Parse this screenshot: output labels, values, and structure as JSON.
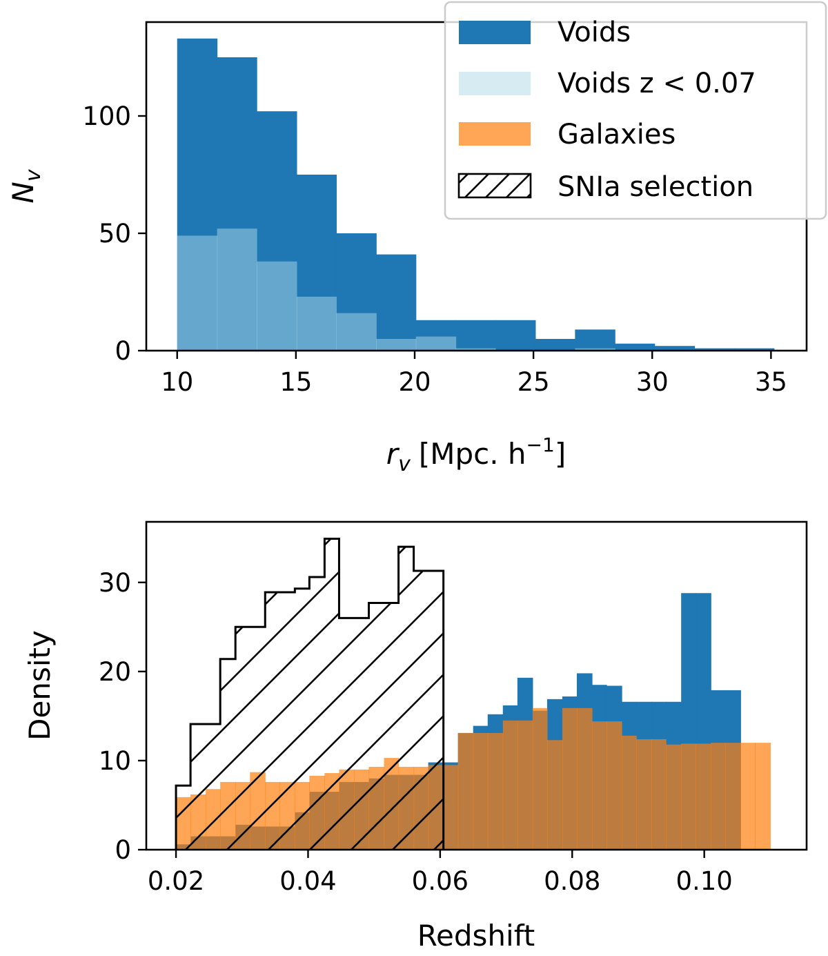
{
  "chart_data": [
    {
      "type": "bar",
      "title": "",
      "xlabel": "r_v [Mpc. h^-1]",
      "ylabel": "N_v",
      "xlim": [
        8.7,
        36.5
      ],
      "ylim": [
        0,
        140
      ],
      "xticks": [
        10,
        15,
        20,
        25,
        30,
        35
      ],
      "yticks": [
        0,
        50,
        100
      ],
      "xtick_labels": [
        "10",
        "15",
        "20",
        "25",
        "30",
        "35"
      ],
      "ytick_labels": [
        "0",
        "50",
        "100"
      ],
      "label_parts": {
        "x_symbol": "r",
        "x_sub": "v",
        "x_unit_open": "[Mpc. h",
        "x_unit_sup": "−1",
        "x_unit_close": "]",
        "y_symbol": "N",
        "y_sub": "v"
      },
      "bin_edges": [
        10.0,
        11.68,
        13.35,
        15.03,
        16.7,
        18.38,
        20.05,
        21.73,
        23.4,
        25.08,
        26.75,
        28.43,
        30.1,
        31.78,
        33.45,
        35.13
      ],
      "series": [
        {
          "name": "Voids",
          "style": "filled",
          "color": "#1f77b4",
          "values": [
            133,
            125,
            102,
            75,
            50,
            41,
            13,
            13,
            13,
            5,
            9,
            3,
            2,
            1,
            1
          ]
        },
        {
          "name": "Voids z < 0.07",
          "style": "filled",
          "color": "#add8e6",
          "opacity": 0.5,
          "values": [
            49,
            52,
            38,
            23,
            16,
            5,
            6,
            1,
            0,
            0,
            1,
            0,
            0,
            0,
            0
          ]
        }
      ],
      "legend": {
        "position": "upper right",
        "entries": [
          {
            "label": "Voids",
            "kind": "fill",
            "color": "#1f77b4"
          },
          {
            "label": "Voids z < 0.07",
            "kind": "fill",
            "color": "#add8e6",
            "opacity": 0.5
          },
          {
            "label": "Galaxies",
            "kind": "fill",
            "color": "#ff7f0e",
            "opacity": 0.7
          },
          {
            "label": "SNIa selection",
            "kind": "hatch",
            "color": "#000000"
          }
        ]
      }
    },
    {
      "type": "bar",
      "title": "",
      "xlabel": "Redshift",
      "ylabel": "Density",
      "xlim": [
        0.0155,
        0.1155
      ],
      "ylim": [
        0,
        36.8
      ],
      "xticks": [
        0.02,
        0.04,
        0.06,
        0.08,
        0.1
      ],
      "yticks": [
        0,
        10,
        20,
        30
      ],
      "xtick_labels": [
        "0.02",
        "0.04",
        "0.06",
        "0.08",
        "0.10"
      ],
      "ytick_labels": [
        "0",
        "10",
        "20",
        "30"
      ],
      "series": [
        {
          "name": "Voids",
          "style": "filled",
          "color": "#1f77b4",
          "bin_edges": [
            0.02,
            0.0222,
            0.0245,
            0.0267,
            0.029,
            0.0312,
            0.0335,
            0.0357,
            0.038,
            0.0402,
            0.0425,
            0.0447,
            0.047,
            0.0492,
            0.0515,
            0.0537,
            0.056,
            0.0582,
            0.0605,
            0.0627,
            0.065,
            0.0672,
            0.0695,
            0.0717,
            0.074,
            0.0762,
            0.0785,
            0.0807,
            0.083,
            0.0852,
            0.0875,
            0.0897,
            0.092,
            0.0942,
            0.0965,
            0.0987,
            0.101,
            0.1032,
            0.1055
          ],
          "values": [
            0.6,
            1.5,
            1.5,
            1.5,
            2.8,
            2.6,
            2.6,
            2.6,
            4.2,
            6.5,
            6.5,
            7.6,
            7.6,
            8.0,
            8.4,
            8.4,
            8.4,
            9.8,
            9.8,
            13.1,
            13.9,
            15.2,
            16.2,
            19.3,
            15.6,
            16.9,
            17.2,
            19.8,
            18.5,
            18.4,
            16.6,
            16.6,
            16.6,
            16.6,
            28.8,
            28.8,
            17.9,
            17.9
          ]
        },
        {
          "name": "Galaxies",
          "style": "filled",
          "color": "#ff7f0e",
          "opacity": 0.7,
          "bin_edges": [
            0.02,
            0.0222,
            0.0245,
            0.0267,
            0.029,
            0.0312,
            0.0335,
            0.0357,
            0.038,
            0.0402,
            0.0425,
            0.0447,
            0.047,
            0.0492,
            0.0515,
            0.0537,
            0.056,
            0.0582,
            0.0605,
            0.0627,
            0.065,
            0.0672,
            0.0695,
            0.0717,
            0.074,
            0.0762,
            0.0785,
            0.0807,
            0.083,
            0.0852,
            0.0875,
            0.0897,
            0.092,
            0.0942,
            0.0965,
            0.0987,
            0.101,
            0.1032,
            0.1055,
            0.1077,
            0.11
          ],
          "values": [
            5.9,
            6.2,
            6.8,
            7.6,
            7.6,
            8.7,
            7.6,
            7.6,
            7.6,
            8.3,
            8.6,
            9.0,
            9.0,
            9.3,
            10.3,
            9.3,
            9.3,
            9.5,
            9.5,
            13.1,
            13.1,
            13.1,
            14.5,
            14.5,
            15.9,
            12.3,
            15.9,
            15.9,
            14.4,
            14.4,
            12.8,
            12.4,
            12.4,
            11.8,
            11.9,
            11.9,
            12.0,
            12.0,
            12.0,
            12.0
          ]
        },
        {
          "name": "SNIa selection",
          "style": "hatched-step",
          "color": "#000000",
          "bin_edges": [
            0.02,
            0.0222,
            0.0245,
            0.0267,
            0.029,
            0.0312,
            0.0335,
            0.0357,
            0.038,
            0.0402,
            0.0425,
            0.0447,
            0.047,
            0.0492,
            0.0515,
            0.0537,
            0.056,
            0.0582,
            0.0605
          ],
          "values": [
            7.2,
            14.1,
            14.1,
            21.4,
            25.0,
            25.0,
            28.9,
            28.9,
            29.3,
            30.6,
            34.9,
            26.0,
            26.0,
            27.7,
            27.7,
            34.0,
            31.3,
            31.3
          ]
        }
      ]
    }
  ]
}
